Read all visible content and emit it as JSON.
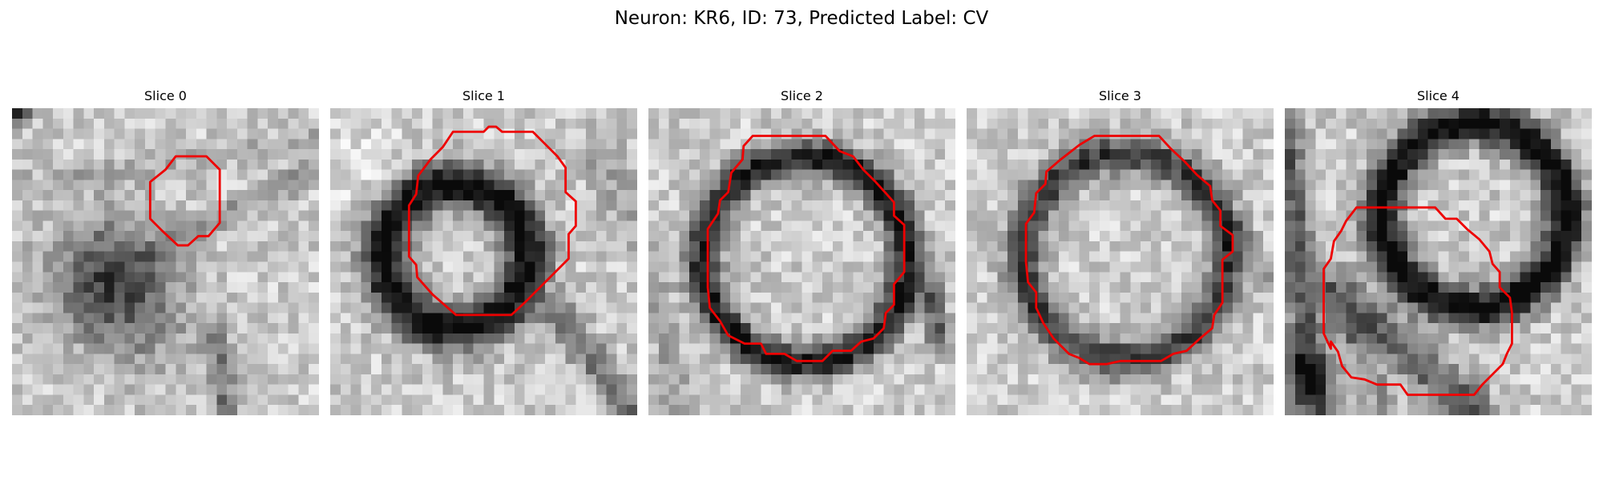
{
  "figure": {
    "title": "Neuron: KR6, ID: 73, Predicted Label: CV"
  },
  "overlay_color": "#ee0000",
  "slices": [
    {
      "title": "Slice 0",
      "motif": "blob-with-diagonal-membrane",
      "seed": 11
    },
    {
      "title": "Slice 1",
      "motif": "dark-ring-left",
      "seed": 23
    },
    {
      "title": "Slice 2",
      "motif": "ring-center",
      "seed": 37
    },
    {
      "title": "Slice 3",
      "motif": "ring-center-faint",
      "seed": 51
    },
    {
      "title": "Slice 4",
      "motif": "ring-upper-right",
      "seed": 67
    }
  ]
}
